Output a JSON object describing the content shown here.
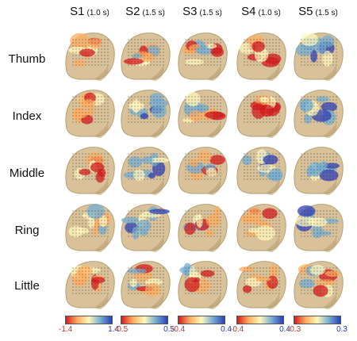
{
  "columns": [
    {
      "name": "S1",
      "duration": "(1.0 s)"
    },
    {
      "name": "S2",
      "duration": "(1.5 s)"
    },
    {
      "name": "S3",
      "duration": "(1.5 s)"
    },
    {
      "name": "S4",
      "duration": "(1.0 s)"
    },
    {
      "name": "S5",
      "duration": "(1.5 s)"
    }
  ],
  "rows": [
    "Thumb",
    "Index",
    "Middle",
    "Ring",
    "Little"
  ],
  "colorbars": [
    {
      "min": "-1.4",
      "max": "1.4"
    },
    {
      "min": "-0.5",
      "max": "0.5"
    },
    {
      "min": "-0.4",
      "max": "0.4"
    },
    {
      "min": "-0.4",
      "max": "0.4"
    },
    {
      "min": "-0.3",
      "max": "0.3"
    }
  ],
  "colors": {
    "head_skin": "#d9c29a",
    "head_shadow": "#b79e72",
    "cmap_neg_strong": "#d7191c",
    "cmap_neg": "#fdae61",
    "cmap_mid": "#fff7bc",
    "cmap_pos": "#74add1",
    "cmap_pos_strong": "#2c3fb5"
  },
  "activation_pattern": {
    "description_key": "per-cell dominant color",
    "cells": [
      [
        "warm",
        "warm-blue",
        "warm-mixed",
        "hot",
        "blue"
      ],
      [
        "warm",
        "blue",
        "mixed",
        "hot",
        "blue"
      ],
      [
        "hot",
        "blue",
        "mixed",
        "blue",
        "blue"
      ],
      [
        "light",
        "blue",
        "mixed",
        "warm",
        "blue"
      ],
      [
        "warm",
        "warm-blue",
        "warm-mixed",
        "warm",
        "warm-blue"
      ]
    ]
  }
}
